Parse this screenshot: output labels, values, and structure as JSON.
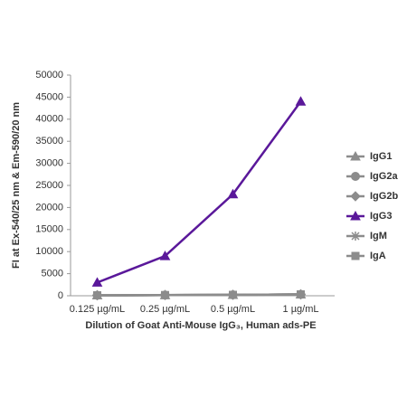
{
  "chart_data": {
    "type": "line",
    "x_label": "Dilution of Goat Anti-Mouse IgG₃, Human ads-PE",
    "y_label": "FI at Ex-540/25 nm & Em-590/20 nm",
    "categories": [
      "0.125 µg/mL",
      "0.25 µg/mL",
      "0.5 µg/mL",
      "1 µg/mL"
    ],
    "ylim": [
      0,
      50000
    ],
    "yticks": [
      0,
      5000,
      10000,
      15000,
      20000,
      25000,
      30000,
      35000,
      40000,
      45000,
      50000
    ],
    "grid": false,
    "legend": "right",
    "series": [
      {
        "name": "IgG1",
        "color": "#8c8c8c",
        "marker": "triangle",
        "values": [
          100,
          150,
          200,
          300
        ]
      },
      {
        "name": "IgG2a",
        "color": "#8c8c8c",
        "marker": "circle",
        "values": [
          100,
          150,
          200,
          300
        ]
      },
      {
        "name": "IgG2b",
        "color": "#8c8c8c",
        "marker": "diamond",
        "values": [
          100,
          150,
          200,
          300
        ]
      },
      {
        "name": "IgG3",
        "color": "#5a189a",
        "marker": "triangle",
        "values": [
          3000,
          9000,
          23000,
          44000
        ]
      },
      {
        "name": "IgM",
        "color": "#8c8c8c",
        "marker": "star",
        "values": [
          100,
          150,
          200,
          300
        ]
      },
      {
        "name": "IgA",
        "color": "#8c8c8c",
        "marker": "square",
        "values": [
          100,
          150,
          200,
          300
        ]
      }
    ]
  }
}
